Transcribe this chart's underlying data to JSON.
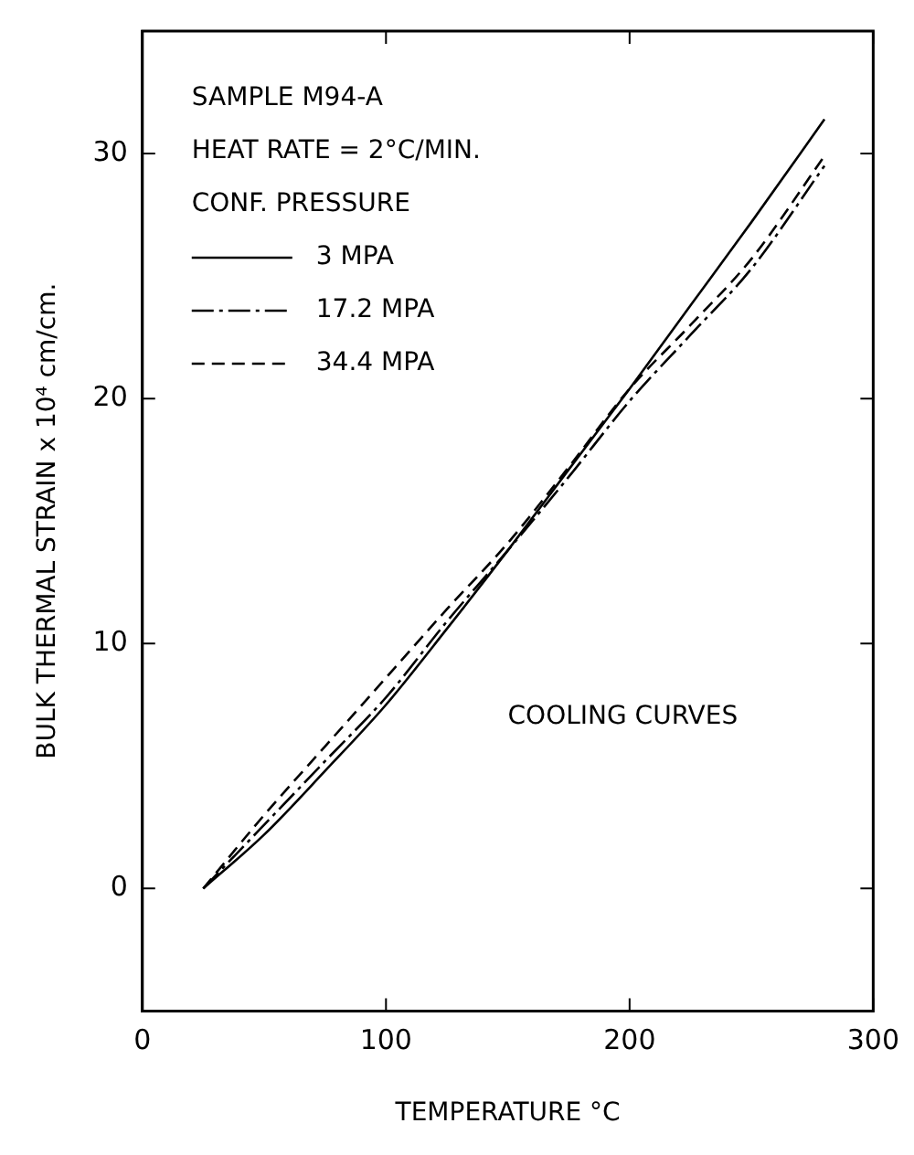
{
  "chart_data": {
    "type": "line",
    "xlabel": "TEMPERATURE °C",
    "ylabel": "BULK THERMAL STRAIN x 10⁴ cm/cm.",
    "legend_title": "CONF. PRESSURE",
    "legend": "top left",
    "grid": false,
    "marker": "none",
    "xlim": [
      0,
      300
    ],
    "ylim": [
      -5,
      35
    ],
    "xticks": [
      0,
      100,
      200,
      300
    ],
    "yticks": [
      0,
      10,
      20,
      30
    ],
    "annotations": [
      "SAMPLE M94-A",
      "HEAT RATE = 2°C/MIN.",
      "COOLING CURVES"
    ],
    "series": [
      {
        "name": "3 MPA",
        "color": "#000000",
        "line_style": "solid",
        "x": [
          25,
          50,
          75,
          100,
          125,
          150,
          175,
          200,
          225,
          250,
          280
        ],
        "values": [
          0,
          2.2,
          4.8,
          7.5,
          10.6,
          13.8,
          17.1,
          20.4,
          23.8,
          27.2,
          31.4
        ]
      },
      {
        "name": "17.2 MPA",
        "color": "#000000",
        "line_style": "dashdot",
        "x": [
          25,
          50,
          75,
          100,
          125,
          150,
          175,
          200,
          225,
          250,
          280
        ],
        "values": [
          0,
          2.6,
          5.2,
          7.8,
          10.9,
          13.8,
          16.8,
          19.9,
          22.6,
          25.3,
          29.5
        ]
      },
      {
        "name": "34.4 MPA",
        "color": "#000000",
        "line_style": "dashed",
        "x": [
          25,
          50,
          75,
          100,
          125,
          150,
          175,
          200,
          225,
          250,
          280
        ],
        "values": [
          0,
          3.0,
          5.8,
          8.6,
          11.4,
          14.1,
          17.2,
          20.4,
          23.0,
          25.7,
          29.9
        ]
      }
    ]
  }
}
